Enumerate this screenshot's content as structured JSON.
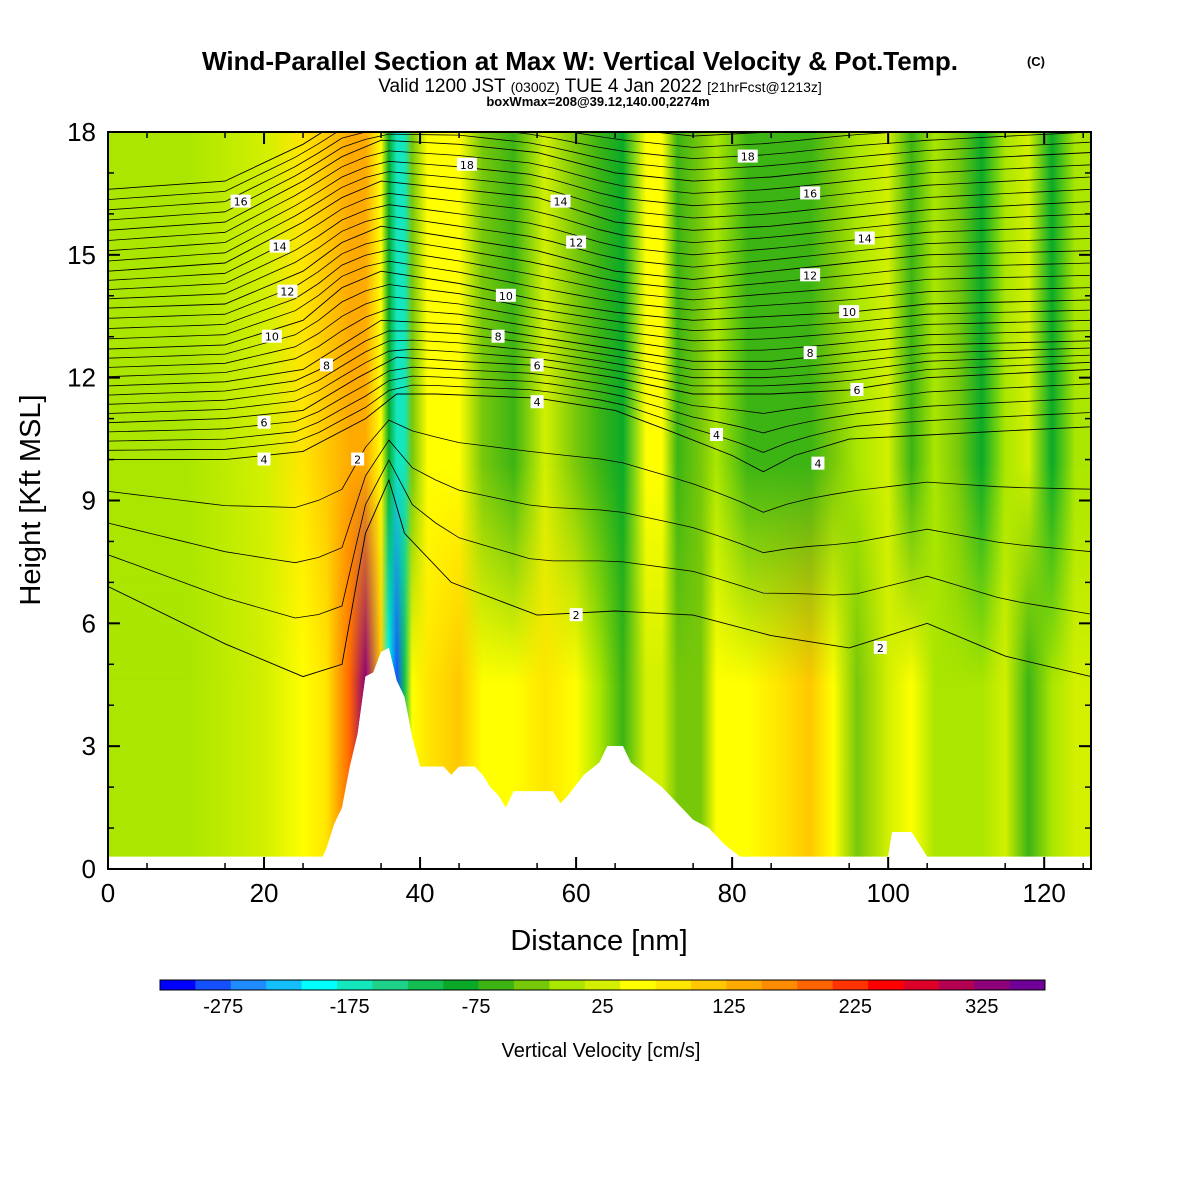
{
  "chart_data": {
    "type": "heatmap",
    "title": "Wind-Parallel Section at Max W: Vertical Velocity & Pot.Temp.",
    "title_mark": "(C)",
    "subtitle_prefix": "Valid 1200 JST",
    "subtitle_utc": "(0300Z)",
    "subtitle_date": "TUE 4 Jan 2022",
    "subtitle_fcst": "[21hrFcst@1213z]",
    "subtitle2": "boxWmax=208@39.12,140.00,2274m",
    "xlabel": "Distance [nm]",
    "ylabel": "Height [Kft MSL]",
    "xlim": [
      0,
      126
    ],
    "ylim": [
      0,
      18
    ],
    "xticks": [
      0,
      20,
      40,
      60,
      80,
      100,
      120
    ],
    "yticks": [
      0,
      3,
      6,
      9,
      12,
      15,
      18
    ],
    "colorbar": {
      "label": "Vertical Velocity [cm/s]",
      "tick_values": [
        -275,
        -175,
        -75,
        25,
        125,
        225,
        325
      ],
      "tick_labels": [
        "-275",
        "-175",
        "-75",
        "25",
        "125",
        "225",
        "325"
      ],
      "colors": [
        "#0000ff",
        "#1450ff",
        "#1e8cff",
        "#14beff",
        "#00ffff",
        "#14e6be",
        "#1ed28c",
        "#14be50",
        "#0aaa28",
        "#3cb414",
        "#78c80a",
        "#aae600",
        "#d2f000",
        "#ffff00",
        "#ffe600",
        "#ffc800",
        "#ffaa00",
        "#ff8c00",
        "#ff6400",
        "#ff3200",
        "#ff0000",
        "#dc0028",
        "#b40050",
        "#8c0078",
        "#6e0096"
      ]
    },
    "vertical_velocity_bands": [
      {
        "x": 0,
        "w_low": 0,
        "w_top": 5
      },
      {
        "x": 10,
        "w_low": 10,
        "w_top": 5
      },
      {
        "x": 20,
        "w_low": 20,
        "w_top": 25
      },
      {
        "x": 25,
        "w_low": 40,
        "w_top": 70
      },
      {
        "x": 28,
        "w_low": 80,
        "w_top": 110
      },
      {
        "x": 31,
        "w_low": 200,
        "w_top": 130
      },
      {
        "x": 33,
        "w_low": 330,
        "w_top": 150
      },
      {
        "x": 35,
        "w_low": 100,
        "w_top": 60
      },
      {
        "x": 36,
        "w_low": -200,
        "w_top": -80
      },
      {
        "x": 37,
        "w_low": -280,
        "w_top": -180
      },
      {
        "x": 38,
        "w_low": -120,
        "w_top": -160
      },
      {
        "x": 39,
        "w_low": 40,
        "w_top": -40
      },
      {
        "x": 41,
        "w_low": 80,
        "w_top": 40
      },
      {
        "x": 45,
        "w_low": 110,
        "w_top": 60
      },
      {
        "x": 48,
        "w_low": 60,
        "w_top": -20
      },
      {
        "x": 52,
        "w_low": 40,
        "w_top": -50
      },
      {
        "x": 56,
        "w_low": 90,
        "w_top": 20
      },
      {
        "x": 60,
        "w_low": 50,
        "w_top": -20
      },
      {
        "x": 63,
        "w_low": -10,
        "w_top": -60
      },
      {
        "x": 66,
        "w_low": -60,
        "w_top": -80
      },
      {
        "x": 69,
        "w_low": 20,
        "w_top": 60
      },
      {
        "x": 71,
        "w_low": 20,
        "w_top": 40
      },
      {
        "x": 73,
        "w_low": -40,
        "w_top": -60
      },
      {
        "x": 76,
        "w_low": -20,
        "w_top": -40
      },
      {
        "x": 78,
        "w_low": 40,
        "w_top": -10
      },
      {
        "x": 82,
        "w_low": 60,
        "w_top": -50
      },
      {
        "x": 86,
        "w_low": 80,
        "w_top": -60
      },
      {
        "x": 90,
        "w_low": 110,
        "w_top": -70
      },
      {
        "x": 93,
        "w_low": 40,
        "w_top": -40
      },
      {
        "x": 96,
        "w_low": -20,
        "w_top": 0
      },
      {
        "x": 100,
        "w_low": 20,
        "w_top": 20
      },
      {
        "x": 103,
        "w_low": 40,
        "w_top": -60
      },
      {
        "x": 106,
        "w_low": 0,
        "w_top": 10
      },
      {
        "x": 109,
        "w_low": -10,
        "w_top": -20
      },
      {
        "x": 112,
        "w_low": 10,
        "w_top": -80
      },
      {
        "x": 115,
        "w_low": 20,
        "w_top": 10
      },
      {
        "x": 118,
        "w_low": -50,
        "w_top": 20
      },
      {
        "x": 121,
        "w_low": 10,
        "w_top": -90
      },
      {
        "x": 124,
        "w_low": 30,
        "w_top": 0
      },
      {
        "x": 126,
        "w_low": 20,
        "w_top": 0
      }
    ],
    "terrain": [
      [
        0,
        0.3
      ],
      [
        27.5,
        0.3
      ],
      [
        28,
        0.5
      ],
      [
        29,
        1.1
      ],
      [
        30,
        1.5
      ],
      [
        31,
        2.5
      ],
      [
        32,
        3.3
      ],
      [
        33,
        4.7
      ],
      [
        34,
        4.8
      ],
      [
        35,
        5.3
      ],
      [
        36,
        5.4
      ],
      [
        37,
        4.6
      ],
      [
        38,
        4.2
      ],
      [
        39,
        3.2
      ],
      [
        40,
        2.5
      ],
      [
        43,
        2.5
      ],
      [
        44,
        2.3
      ],
      [
        45,
        2.5
      ],
      [
        47,
        2.5
      ],
      [
        48,
        2.3
      ],
      [
        49,
        2.0
      ],
      [
        50,
        1.8
      ],
      [
        51,
        1.5
      ],
      [
        52,
        1.9
      ],
      [
        57,
        1.9
      ],
      [
        58,
        1.6
      ],
      [
        59,
        1.8
      ],
      [
        61,
        2.3
      ],
      [
        63,
        2.6
      ],
      [
        64,
        3.0
      ],
      [
        66,
        3.0
      ],
      [
        67,
        2.6
      ],
      [
        69,
        2.3
      ],
      [
        71,
        2.0
      ],
      [
        73,
        1.6
      ],
      [
        75,
        1.2
      ],
      [
        77,
        1.0
      ],
      [
        79,
        0.6
      ],
      [
        81,
        0.3
      ],
      [
        100,
        0.3
      ],
      [
        100.5,
        0.9
      ],
      [
        103,
        0.9
      ],
      [
        104,
        0.6
      ],
      [
        105,
        0.3
      ],
      [
        126,
        0.3
      ]
    ],
    "theta_contours": [
      {
        "label": "2",
        "pts": [
          [
            0,
            6.9
          ],
          [
            15,
            5.5
          ],
          [
            25,
            4.7
          ],
          [
            30,
            5.0
          ],
          [
            33,
            8.2
          ],
          [
            36,
            9.5
          ],
          [
            38,
            8.2
          ],
          [
            44,
            7.0
          ],
          [
            55,
            6.2
          ],
          [
            65,
            6.3
          ],
          [
            75,
            6.2
          ],
          [
            85,
            5.7
          ],
          [
            95,
            5.4
          ],
          [
            105,
            6.0
          ],
          [
            115,
            5.2
          ],
          [
            126,
            4.7
          ]
        ]
      },
      {
        "label": "4",
        "pts": [
          [
            0,
            10.0
          ],
          [
            15,
            10.0
          ],
          [
            25,
            10.2
          ],
          [
            33,
            11.0
          ],
          [
            37,
            11.6
          ],
          [
            42,
            11.6
          ],
          [
            55,
            11.5
          ],
          [
            65,
            11.2
          ],
          [
            72,
            10.7
          ],
          [
            80,
            10.1
          ],
          [
            84,
            9.7
          ],
          [
            88,
            10.1
          ],
          [
            95,
            10.5
          ],
          [
            105,
            10.6
          ],
          [
            115,
            10.7
          ],
          [
            126,
            10.8
          ]
        ]
      },
      {
        "label": "6",
        "pts": [
          [
            0,
            10.9
          ],
          [
            15,
            11.0
          ],
          [
            25,
            11.2
          ],
          [
            32,
            12.0
          ],
          [
            37,
            12.5
          ],
          [
            45,
            12.4
          ],
          [
            55,
            12.3
          ],
          [
            65,
            12.0
          ],
          [
            75,
            11.6
          ],
          [
            85,
            11.6
          ],
          [
            95,
            11.7
          ],
          [
            105,
            12.0
          ],
          [
            126,
            12.2
          ]
        ]
      },
      {
        "label": "8",
        "pts": [
          [
            0,
            11.8
          ],
          [
            15,
            11.9
          ],
          [
            25,
            12.2
          ],
          [
            30,
            12.8
          ],
          [
            35,
            13.4
          ],
          [
            45,
            13.3
          ],
          [
            55,
            13.0
          ],
          [
            65,
            12.7
          ],
          [
            75,
            12.4
          ],
          [
            85,
            12.4
          ],
          [
            95,
            12.6
          ],
          [
            105,
            12.8
          ],
          [
            126,
            12.9
          ]
        ]
      },
      {
        "label": "10",
        "pts": [
          [
            0,
            12.7
          ],
          [
            15,
            12.8
          ],
          [
            25,
            13.4
          ],
          [
            30,
            14.2
          ],
          [
            35,
            14.6
          ],
          [
            45,
            14.3
          ],
          [
            55,
            13.9
          ],
          [
            65,
            13.6
          ],
          [
            75,
            13.4
          ],
          [
            85,
            13.5
          ],
          [
            95,
            13.6
          ],
          [
            105,
            13.8
          ],
          [
            126,
            13.9
          ]
        ]
      },
      {
        "label": "12",
        "pts": [
          [
            0,
            13.7
          ],
          [
            15,
            13.8
          ],
          [
            25,
            14.6
          ],
          [
            30,
            15.3
          ],
          [
            35,
            15.7
          ],
          [
            45,
            15.4
          ],
          [
            55,
            15.1
          ],
          [
            65,
            14.6
          ],
          [
            75,
            14.4
          ],
          [
            85,
            14.6
          ],
          [
            95,
            14.8
          ],
          [
            105,
            15.0
          ],
          [
            126,
            15.1
          ]
        ]
      },
      {
        "label": "14",
        "pts": [
          [
            0,
            14.6
          ],
          [
            15,
            14.8
          ],
          [
            25,
            15.8
          ],
          [
            30,
            16.4
          ],
          [
            35,
            16.8
          ],
          [
            45,
            16.6
          ],
          [
            55,
            16.4
          ],
          [
            65,
            15.8
          ],
          [
            75,
            15.6
          ],
          [
            85,
            15.7
          ],
          [
            95,
            15.9
          ],
          [
            105,
            16.1
          ],
          [
            126,
            16.3
          ]
        ]
      },
      {
        "label": "16",
        "pts": [
          [
            0,
            15.6
          ],
          [
            15,
            15.8
          ],
          [
            25,
            16.8
          ],
          [
            30,
            17.4
          ],
          [
            35,
            17.8
          ],
          [
            45,
            17.7
          ],
          [
            55,
            17.5
          ],
          [
            65,
            17.0
          ],
          [
            75,
            16.8
          ],
          [
            85,
            16.9
          ],
          [
            95,
            17.1
          ],
          [
            105,
            17.3
          ],
          [
            126,
            17.5
          ]
        ]
      },
      {
        "label": "18",
        "pts": [
          [
            0,
            16.6
          ],
          [
            15,
            16.8
          ],
          [
            25,
            17.7
          ],
          [
            30,
            18.3
          ],
          [
            45,
            18.6
          ],
          [
            65,
            18.1
          ],
          [
            75,
            17.9
          ],
          [
            85,
            18.0
          ],
          [
            95,
            18.2
          ],
          [
            126,
            18.5
          ]
        ]
      }
    ],
    "contour_labels": [
      {
        "text": "2",
        "x": 32,
        "y": 10.0
      },
      {
        "text": "2",
        "x": 60,
        "y": 6.2
      },
      {
        "text": "2",
        "x": 99,
        "y": 5.4
      },
      {
        "text": "4",
        "x": 20,
        "y": 10.0
      },
      {
        "text": "4",
        "x": 55,
        "y": 11.4
      },
      {
        "text": "4",
        "x": 78,
        "y": 10.6
      },
      {
        "text": "4",
        "x": 91,
        "y": 9.9
      },
      {
        "text": "6",
        "x": 20,
        "y": 10.9
      },
      {
        "text": "6",
        "x": 55,
        "y": 12.3
      },
      {
        "text": "6",
        "x": 96,
        "y": 11.7
      },
      {
        "text": "8",
        "x": 28,
        "y": 12.3
      },
      {
        "text": "8",
        "x": 50,
        "y": 13.0
      },
      {
        "text": "8",
        "x": 90,
        "y": 12.6
      },
      {
        "text": "10",
        "x": 21,
        "y": 13.0
      },
      {
        "text": "10",
        "x": 51,
        "y": 14.0
      },
      {
        "text": "10",
        "x": 95,
        "y": 13.6
      },
      {
        "text": "12",
        "x": 23,
        "y": 14.1
      },
      {
        "text": "12",
        "x": 60,
        "y": 15.3
      },
      {
        "text": "12",
        "x": 90,
        "y": 14.5
      },
      {
        "text": "14",
        "x": 22,
        "y": 15.2
      },
      {
        "text": "14",
        "x": 58,
        "y": 16.3
      },
      {
        "text": "14",
        "x": 97,
        "y": 15.4
      },
      {
        "text": "16",
        "x": 17,
        "y": 16.3
      },
      {
        "text": "16",
        "x": 90,
        "y": 16.5
      },
      {
        "text": "18",
        "x": 46,
        "y": 17.2
      },
      {
        "text": "18",
        "x": 82,
        "y": 17.4
      }
    ]
  }
}
